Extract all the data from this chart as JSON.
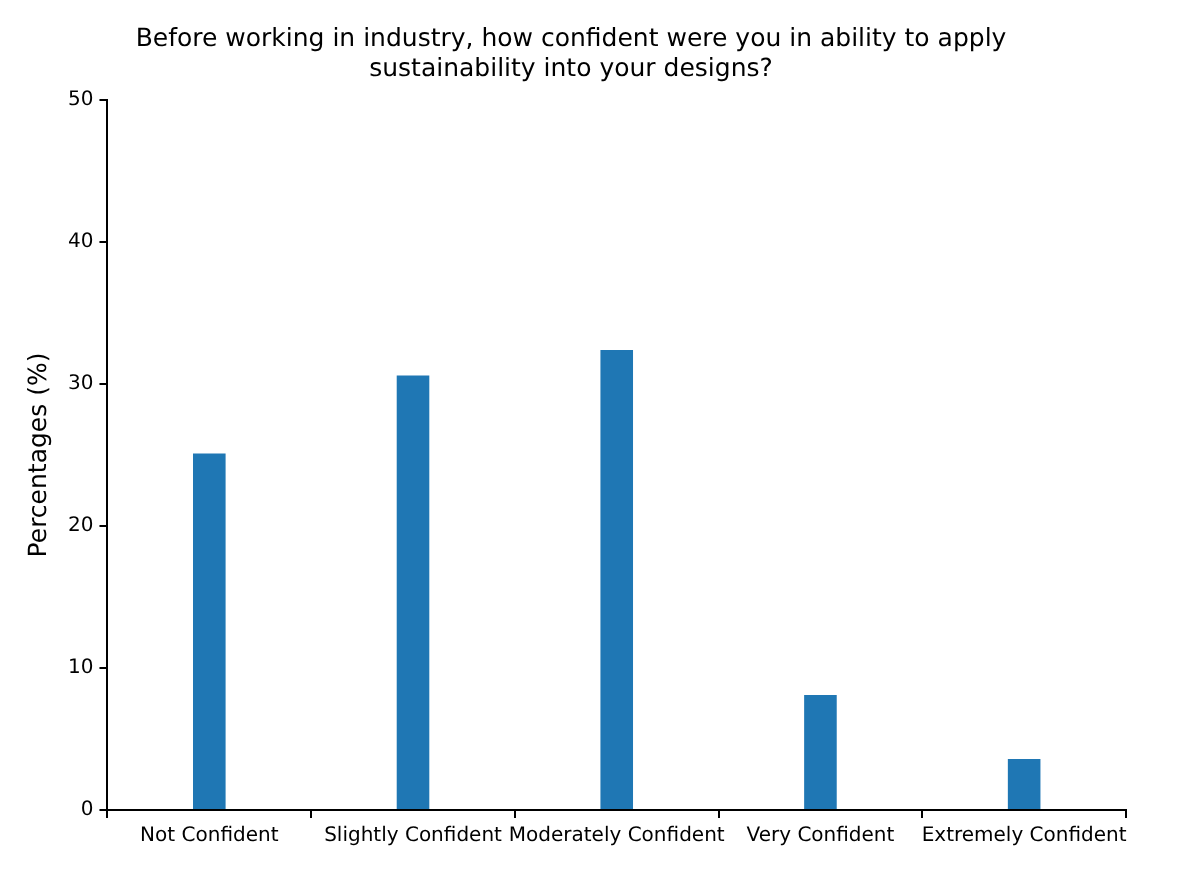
{
  "chart_data": {
    "type": "bar",
    "title": "Before working in industry, how confident were you in ability to apply sustainability into your designs?",
    "ylabel": "Percentages (%)",
    "categories": [
      "Not Confident",
      "Slightly Confident",
      "Moderately Confident",
      "Very Confident",
      "Extremely Confident"
    ],
    "values": [
      25.1,
      30.6,
      32.4,
      8.1,
      3.6
    ],
    "color": "#1f77b4",
    "ylim": [
      0,
      50
    ],
    "yticks": [
      0,
      10,
      20,
      30,
      40,
      50
    ],
    "grid": false,
    "legend": false
  }
}
